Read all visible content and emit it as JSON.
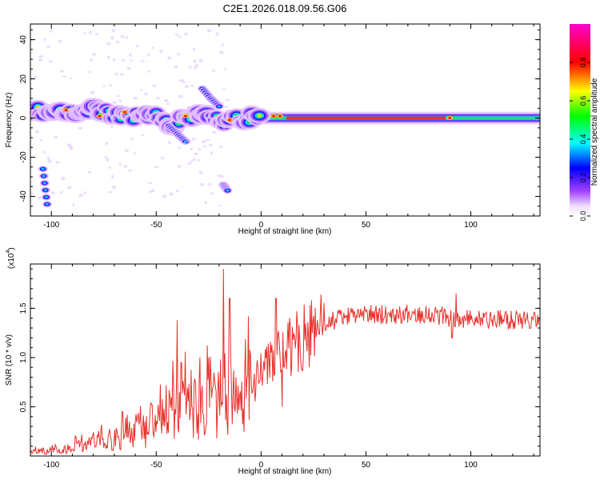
{
  "title": "C2E1.2026.018.09.56.G06",
  "chart_data": [
    {
      "type": "heatmap",
      "xlabel": "Height of straight line (km)",
      "ylabel": "Frequency (Hz)",
      "xlim": [
        -110,
        133
      ],
      "ylim": [
        -50,
        48
      ],
      "xticks": [
        -100,
        -50,
        0,
        50,
        100
      ],
      "yticks": [
        -40,
        -20,
        0,
        20,
        40
      ],
      "xtick_labels": [
        "-100",
        "-50",
        "0",
        "50",
        "100"
      ],
      "ytick_labels": [
        "-40",
        "-20",
        "0",
        "20",
        "40"
      ],
      "ridge": [
        {
          "x": -110,
          "f": 4
        },
        {
          "x": -95,
          "f": 3
        },
        {
          "x": -80,
          "f": 4
        },
        {
          "x": -70,
          "f": 2
        },
        {
          "x": -60,
          "f": 1
        },
        {
          "x": -50,
          "f": 1
        },
        {
          "x": -42,
          "f": -3
        },
        {
          "x": -33,
          "f": 1
        },
        {
          "x": -25,
          "f": 1
        },
        {
          "x": -18,
          "f": -2
        },
        {
          "x": -10,
          "f": -1
        },
        {
          "x": 0,
          "f": 1
        },
        {
          "x": 10,
          "f": 1
        },
        {
          "x": 133,
          "f": 0
        }
      ],
      "branches": [
        {
          "x": [
            -28,
            -24,
            -20
          ],
          "f": [
            15,
            10,
            6
          ]
        },
        {
          "x": [
            -44,
            -40,
            -36
          ],
          "f": [
            -4,
            -8,
            -12
          ]
        },
        {
          "x": [
            -18,
            -16
          ],
          "f": [
            -34,
            -37
          ]
        },
        {
          "x": [
            -104,
            -102
          ],
          "f": [
            -26,
            -44
          ]
        }
      ],
      "colorbar": {
        "label": "Normalized spectral amplitude",
        "range": [
          0,
          1
        ],
        "ticks": [
          0,
          0.2,
          0.4,
          0.6,
          0.8
        ],
        "tick_labels": [
          "0.0",
          "0.2",
          "0.4",
          "0.6",
          "0.8"
        ]
      }
    },
    {
      "type": "line",
      "xlabel": "Height of straight line (km)",
      "ylabel": "SNR (10 * v/v)",
      "scale_label": "(x10",
      "scale_exp": "4",
      "xlim": [
        -110,
        133
      ],
      "ylim": [
        0,
        1.95
      ],
      "xticks": [
        -100,
        -50,
        0,
        50,
        100
      ],
      "yticks": [
        0.5,
        1.0,
        1.5
      ],
      "xtick_labels": [
        "-100",
        "-50",
        "0",
        "50",
        "100"
      ],
      "ytick_labels": [
        "0.5",
        "1.0",
        "1.5"
      ],
      "color": "#e8302a",
      "trend": [
        {
          "x": -110,
          "y": 0.04
        },
        {
          "x": -95,
          "y": 0.06
        },
        {
          "x": -80,
          "y": 0.12
        },
        {
          "x": -65,
          "y": 0.2
        },
        {
          "x": -55,
          "y": 0.26
        },
        {
          "x": -45,
          "y": 0.38
        },
        {
          "x": -38,
          "y": 0.48
        },
        {
          "x": -30,
          "y": 0.42
        },
        {
          "x": -20,
          "y": 0.55
        },
        {
          "x": -12,
          "y": 0.35
        },
        {
          "x": -8,
          "y": 0.55
        },
        {
          "x": -2,
          "y": 0.8
        },
        {
          "x": 5,
          "y": 0.95
        },
        {
          "x": 15,
          "y": 1.12
        },
        {
          "x": 25,
          "y": 1.28
        },
        {
          "x": 35,
          "y": 1.38
        },
        {
          "x": 45,
          "y": 1.43
        },
        {
          "x": 60,
          "y": 1.44
        },
        {
          "x": 80,
          "y": 1.45
        },
        {
          "x": 92,
          "y": 1.4
        },
        {
          "x": 100,
          "y": 1.39
        },
        {
          "x": 133,
          "y": 1.38
        }
      ],
      "peaks": [
        {
          "x": -66,
          "y": 0.45
        },
        {
          "x": -52,
          "y": 0.52
        },
        {
          "x": -40,
          "y": 1.38
        },
        {
          "x": -38,
          "y": 0.95
        },
        {
          "x": -25,
          "y": 1.0
        },
        {
          "x": -18,
          "y": 1.9
        },
        {
          "x": -15,
          "y": 1.6
        },
        {
          "x": -12,
          "y": 0.8
        },
        {
          "x": 7,
          "y": 1.6
        },
        {
          "x": 10,
          "y": 0.5
        },
        {
          "x": 93,
          "y": 1.65
        },
        {
          "x": 91,
          "y": 1.2
        }
      ]
    }
  ]
}
